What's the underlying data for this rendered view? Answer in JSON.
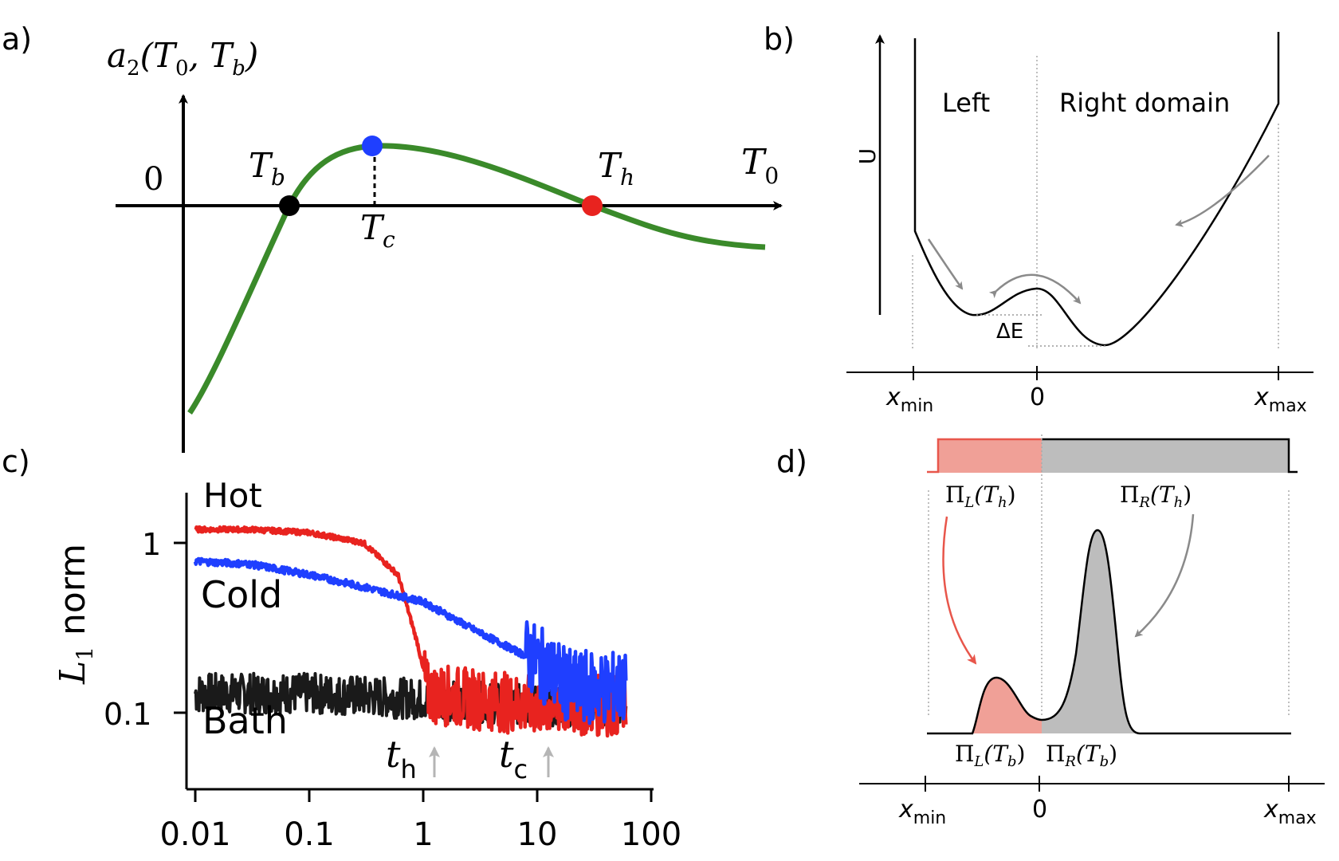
{
  "panels": {
    "a": {
      "tag": "a)",
      "ylabel": "a",
      "ylabel_sub": "2",
      "ylabel_args": "(T",
      "ylabel_args_sub1": "0",
      "ylabel_args_mid": ", T",
      "ylabel_args_sub2": "b",
      "ylabel_close": ")",
      "zero": "0",
      "xlabel": "T",
      "xlabel_sub": "0",
      "tb": "T",
      "tb_sub": "b",
      "tc": "T",
      "tc_sub": "c",
      "th": "T",
      "th_sub": "h",
      "curve_color": "#3a8a2a",
      "tb_color": "#000000",
      "tc_color": "#1f3fff",
      "th_color": "#e8231f"
    },
    "b": {
      "tag": "b)",
      "ylabel": "U",
      "left_label": "Left",
      "right_label": "Right domain",
      "delta_e": "ΔE",
      "x_min": "x",
      "x_min_sub": "min",
      "x_zero": "0",
      "x_max": "x",
      "x_max_sub": "max"
    },
    "c": {
      "tag": "c)",
      "ylabel": "L",
      "ylabel_sub": "1",
      "ylabel_rest": " norm",
      "hot_label": "Hot",
      "cold_label": "Cold",
      "bath_label": "Bath",
      "th_label": "t",
      "th_sub": "h",
      "tc_label": "t",
      "tc_sub": "c",
      "ytick_1": "1",
      "ytick_01": "0.1"
    },
    "d": {
      "tag": "d)",
      "pi_l_th": "Π",
      "pi_l_th_sub": "L",
      "pi_l_th_arg": "(T",
      "pi_l_th_arg_sub": "h",
      "pi_l_th_close": ")",
      "pi_r_th": "Π",
      "pi_r_th_sub": "R",
      "pi_r_th_arg": "(T",
      "pi_r_th_arg_sub": "h",
      "pi_r_th_close": ")",
      "pi_l_tb": "Π",
      "pi_l_tb_sub": "L",
      "pi_l_tb_arg": "(T",
      "pi_l_tb_arg_sub": "b",
      "pi_l_tb_close": ")",
      "pi_r_tb": "Π",
      "pi_r_tb_sub": "R",
      "pi_r_tb_arg": "(T",
      "pi_r_tb_arg_sub": "b",
      "pi_r_tb_close": ")",
      "x_min": "x",
      "x_min_sub": "min",
      "x_zero": "0",
      "x_max": "x",
      "x_max_sub": "max",
      "left_color": "#f0a097",
      "right_color": "#bdbdbd"
    }
  },
  "chart_data": [
    {
      "panel": "a",
      "type": "line",
      "xlabel": "T0",
      "ylabel": "a2(T0, Tb)",
      "points": {
        "Tb": "root (black)",
        "Tc": "maximum (blue)",
        "Th": "root (red)"
      }
    },
    {
      "panel": "b",
      "type": "line",
      "xlabel": "",
      "ylabel": "U",
      "x_ticks": [
        "xmin",
        "0",
        "xmax"
      ],
      "annotations": [
        "Left",
        "Right domain",
        "ΔE"
      ]
    },
    {
      "panel": "c",
      "type": "line",
      "ylabel": "L1 norm",
      "xscale": "log",
      "yscale": "log",
      "x_ticks": [
        "0.01",
        "0.1",
        "1",
        "10",
        "100"
      ],
      "y_ticks": [
        "1",
        "0.1"
      ],
      "series": [
        {
          "name": "Hot",
          "color": "#e8231f",
          "x": [
            0.01,
            0.03,
            0.1,
            0.3,
            0.6,
            0.9,
            1.1,
            3,
            10,
            20,
            60
          ],
          "y": [
            1.2,
            1.2,
            1.15,
            1.0,
            0.65,
            0.25,
            0.13,
            0.12,
            0.11,
            0.11,
            0.11
          ]
        },
        {
          "name": "Cold",
          "color": "#1f3fff",
          "x": [
            0.01,
            0.03,
            0.1,
            0.3,
            1,
            3,
            10,
            20,
            60
          ],
          "y": [
            0.78,
            0.75,
            0.65,
            0.55,
            0.45,
            0.3,
            0.2,
            0.14,
            0.14
          ]
        },
        {
          "name": "Bath",
          "color": "#1a1a1a",
          "x": [
            0.01,
            0.1,
            1,
            10,
            60
          ],
          "y": [
            0.13,
            0.13,
            0.12,
            0.11,
            0.11
          ]
        }
      ],
      "markers": [
        {
          "label": "th",
          "x": 1.3
        },
        {
          "label": "tc",
          "x": 14
        }
      ]
    },
    {
      "panel": "d",
      "type": "area",
      "x_ticks": [
        "xmin",
        "0",
        "xmax"
      ],
      "series": [
        {
          "name": "ΠL(Tb)"
        },
        {
          "name": "ΠR(Tb)"
        }
      ]
    }
  ]
}
